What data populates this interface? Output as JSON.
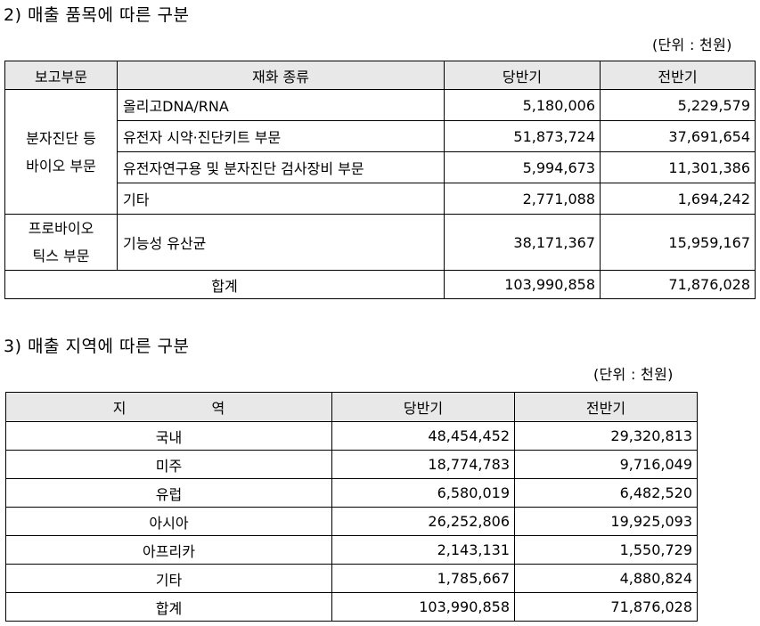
{
  "section2": {
    "heading": "2) 매출 품목에 따른 구분",
    "unit": "(단위 : 천원)",
    "headers": [
      "보고부문",
      "재화 종류",
      "당반기",
      "전반기"
    ],
    "groups": [
      {
        "segment": "분자진단 등 바이오 부문",
        "segment_lines": [
          "분자진단 등",
          "바이오 부문"
        ],
        "rows": [
          {
            "item": "올리고DNA/RNA",
            "current": "5,180,006",
            "previous": "5,229,579"
          },
          {
            "item": "유전자 시약·진단키트 부문",
            "current": "51,873,724",
            "previous": "37,691,654"
          },
          {
            "item": "유전자연구용 및 분자진단 검사장비 부문",
            "current": "5,994,673",
            "previous": "11,301,386"
          },
          {
            "item": "기타",
            "current": "2,771,088",
            "previous": "1,694,242"
          }
        ]
      },
      {
        "segment": "프로바이오 틱스 부문",
        "segment_lines": [
          "프로바이오",
          "틱스 부문"
        ],
        "rows": [
          {
            "item": "기능성 유산균",
            "current": "38,171,367",
            "previous": "15,959,167"
          }
        ]
      }
    ],
    "total": {
      "label": "합계",
      "current": "103,990,858",
      "previous": "71,876,028"
    }
  },
  "section3": {
    "heading": "3) 매출 지역에 따른 구분",
    "unit": "(단위 : 천원)",
    "headers": [
      "지 역",
      "당반기",
      "전반기"
    ],
    "header_region_parts": [
      "지",
      "역"
    ],
    "rows": [
      {
        "region": "국내",
        "current": "48,454,452",
        "previous": "29,320,813"
      },
      {
        "region": "미주",
        "current": "18,774,783",
        "previous": "9,716,049"
      },
      {
        "region": "유럽",
        "current": "6,580,019",
        "previous": "6,482,520"
      },
      {
        "region": "아시아",
        "current": "26,252,806",
        "previous": "19,925,093"
      },
      {
        "region": "아프리카",
        "current": "2,143,131",
        "previous": "1,550,729"
      },
      {
        "region": "기타",
        "current": "1,785,667",
        "previous": "4,880,824"
      },
      {
        "region": "합계",
        "current": "103,990,858",
        "previous": "71,876,028"
      }
    ]
  }
}
